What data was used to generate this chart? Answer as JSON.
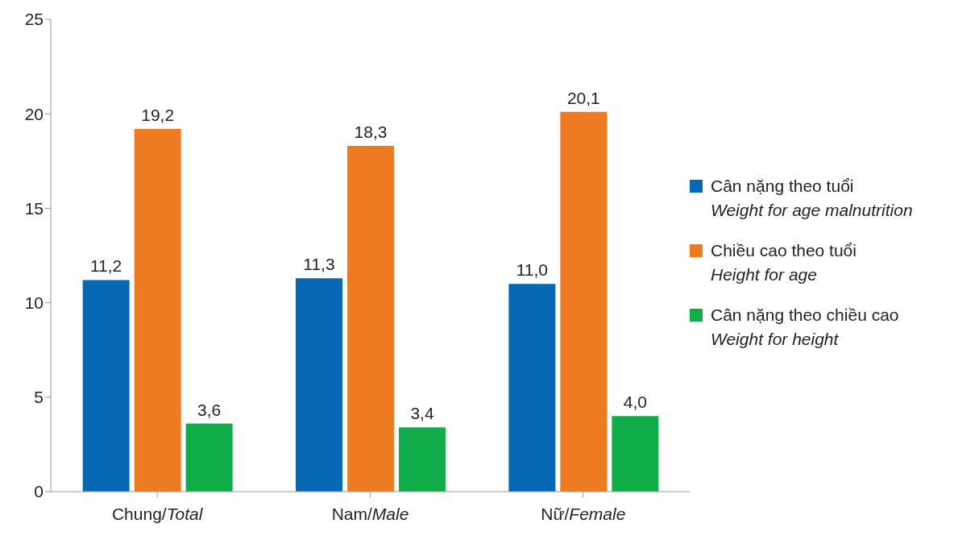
{
  "chart_data": {
    "type": "bar",
    "categories": [
      "Chung/Total",
      "Nam/Male",
      "Nữ/Female"
    ],
    "series": [
      {
        "name": "Cân nặng theo tuổi\nWeight for age malnutrition",
        "color": "#0868b4",
        "values": [
          11.2,
          11.3,
          11.0
        ],
        "value_labels": [
          "11,2",
          "11,3",
          "11,0"
        ]
      },
      {
        "name": "Chiều cao theo tuổi\nHeight for age",
        "color": "#ee7b22",
        "values": [
          19.2,
          18.3,
          20.1
        ],
        "value_labels": [
          "19,2",
          "18,3",
          "20,1"
        ]
      },
      {
        "name": "Cân nặng theo chiều cao\nWeight for height",
        "color": "#12ad4b",
        "values": [
          3.6,
          3.4,
          4.0
        ],
        "value_labels": [
          "3,6",
          "3,4",
          "4,0"
        ]
      }
    ],
    "ylim": [
      0,
      25
    ],
    "yticks": [
      0,
      5,
      10,
      15,
      20,
      25
    ],
    "grid": false,
    "legend": "right"
  }
}
